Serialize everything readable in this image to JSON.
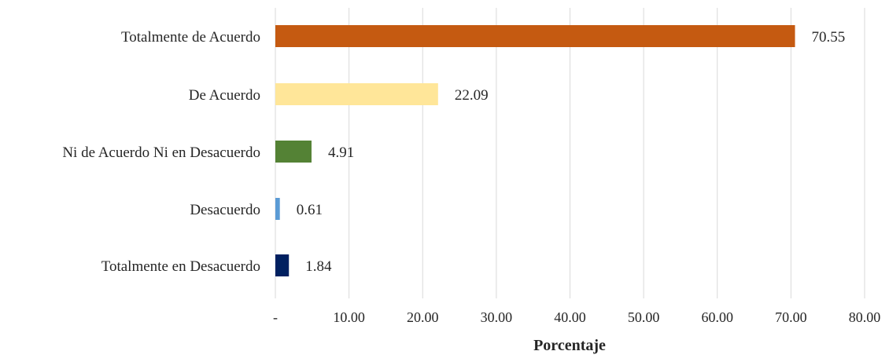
{
  "chart_data": {
    "type": "bar",
    "orientation": "horizontal",
    "title": "",
    "xlabel": "Porcentaje",
    "ylabel": "",
    "xlim": [
      0,
      80
    ],
    "x_ticks": [
      0,
      10,
      20,
      30,
      40,
      50,
      60,
      70,
      80
    ],
    "x_tick_labels": [
      "-",
      "10.00",
      "20.00",
      "30.00",
      "40.00",
      "50.00",
      "60.00",
      "70.00",
      "80.00"
    ],
    "grid": "vertical",
    "legend": "none",
    "categories": [
      "Totalmente de Acuerdo",
      "De Acuerdo",
      "Ni de Acuerdo Ni en Desacuerdo",
      "Desacuerdo",
      "Totalmente en Desacuerdo"
    ],
    "values": [
      70.55,
      22.09,
      4.91,
      0.61,
      1.84
    ],
    "value_labels": [
      "70.55",
      "22.09",
      "4.91",
      "0.61",
      "1.84"
    ],
    "colors": [
      "#c55a11",
      "#ffe699",
      "#548235",
      "#5b9bd5",
      "#002060"
    ]
  }
}
